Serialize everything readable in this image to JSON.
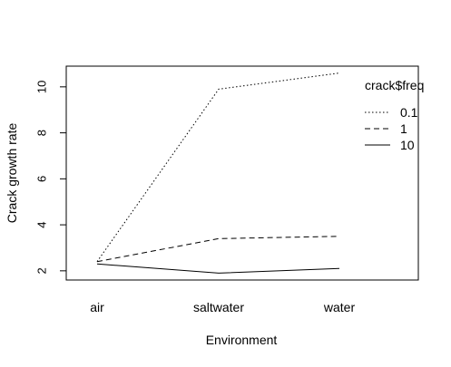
{
  "chart_data": {
    "type": "line",
    "title": "",
    "xlabel": "Environment",
    "ylabel": "Crack growth rate",
    "categories": [
      "air",
      "saltwater",
      "water"
    ],
    "ylim": [
      1.6,
      10.9
    ],
    "yticks": [
      2,
      4,
      6,
      8,
      10
    ],
    "grid": false,
    "legend": {
      "title": "crack$freq",
      "placement": "top-right"
    },
    "series": [
      {
        "name": "0.1",
        "line_style": "dotted",
        "color": "#000000",
        "values": [
          2.4,
          9.9,
          10.6
        ]
      },
      {
        "name": "1",
        "line_style": "dashed",
        "color": "#000000",
        "values": [
          2.4,
          3.4,
          3.5
        ]
      },
      {
        "name": "10",
        "line_style": "solid",
        "color": "#000000",
        "values": [
          2.3,
          1.9,
          2.1
        ]
      }
    ]
  }
}
